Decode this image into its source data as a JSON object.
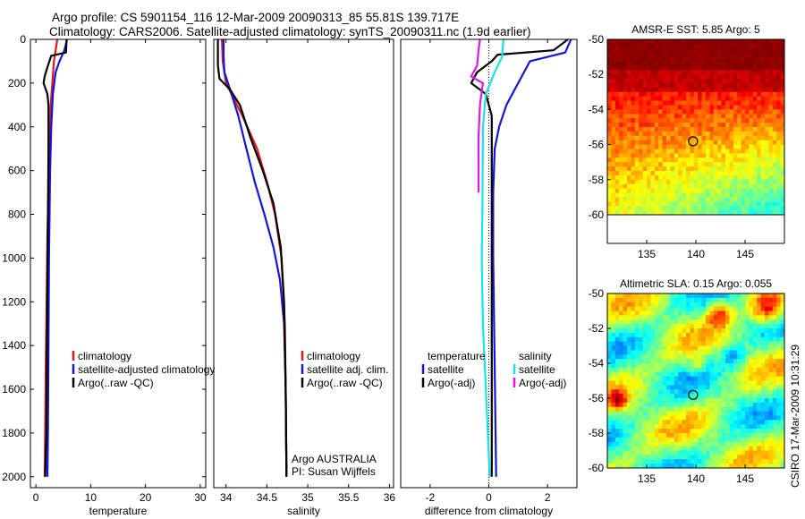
{
  "header": {
    "title_line1": "Argo profile: CS 5901154_116 12-Mar-2009 20090313_85 55.81S 139.717E",
    "title_line2": "Climatology: CARS2006. Satellite-adjusted climatology: synTS_20090311.nc (1.9d earlier)"
  },
  "stamp": "CSIRO 17-Mar-2009 10:31:29",
  "colors": {
    "climatology": "#e8141a",
    "satellite": "#1414e0",
    "argo": "#000000",
    "salinity_satellite": "#14e6e6",
    "salinity_argo": "#e614e6"
  },
  "chart_data": [
    {
      "id": "temperature",
      "type": "line",
      "xlabel": "temperature",
      "ylabel": "",
      "xlim": [
        -1,
        31
      ],
      "ylim": [
        2050,
        0
      ],
      "xticks": [
        0,
        10,
        20,
        30
      ],
      "yticks": [
        0,
        200,
        400,
        600,
        800,
        1000,
        1200,
        1400,
        1600,
        1800,
        2000
      ],
      "legend": [
        "climatology",
        "satellite-adjusted climatology",
        "Argo(..raw -QC)"
      ],
      "series": [
        {
          "name": "climatology",
          "color": "#e8141a",
          "x": [
            3.9,
            3.6,
            3.3,
            3.0,
            2.7,
            2.5,
            2.3,
            2.1,
            2.0,
            1.9,
            1.8,
            1.7,
            1.6
          ],
          "y": [
            0,
            50,
            100,
            200,
            300,
            500,
            700,
            900,
            1100,
            1300,
            1500,
            1800,
            2000
          ]
        },
        {
          "name": "satellite-adjusted climatology",
          "color": "#1414e0",
          "x": [
            5.7,
            5.2,
            4.3,
            3.6,
            3.1,
            2.8,
            2.6,
            2.5,
            2.4,
            2.3,
            2.2,
            2.1
          ],
          "y": [
            0,
            50,
            100,
            150,
            250,
            400,
            600,
            800,
            1000,
            1400,
            1800,
            2000
          ]
        },
        {
          "name": "Argo(..raw -QC)",
          "color": "#000000",
          "x": [
            5.6,
            5.5,
            2.8,
            2.2,
            1.6,
            1.4,
            2.1,
            2.3,
            2.3,
            2.2,
            2.1,
            2.0,
            1.9,
            1.7
          ],
          "y": [
            0,
            60,
            75,
            120,
            170,
            200,
            250,
            300,
            500,
            800,
            1100,
            1400,
            1800,
            2000
          ]
        }
      ]
    },
    {
      "id": "salinity",
      "type": "line",
      "xlabel": "salinity",
      "ylabel": "",
      "xlim": [
        33.85,
        36.05
      ],
      "ylim": [
        2050,
        0
      ],
      "xticks": [
        34,
        34.5,
        35,
        35.5,
        36
      ],
      "legend": [
        "climatology",
        "satellite adj. clim.",
        "Argo(..raw -QC)"
      ],
      "annotation": [
        "Argo AUSTRALIA",
        "PI: Susan Wijffels"
      ],
      "series": [
        {
          "name": "climatology",
          "color": "#e8141a",
          "x": [
            33.95,
            33.96,
            34.0,
            34.08,
            34.2,
            34.38,
            34.5,
            34.6,
            34.68,
            34.72,
            34.73,
            34.74
          ],
          "y": [
            0,
            100,
            200,
            260,
            350,
            500,
            650,
            800,
            1000,
            1300,
            1600,
            2000
          ]
        },
        {
          "name": "satellite adj. clim.",
          "color": "#1414e0",
          "x": [
            33.97,
            33.97,
            33.98,
            34.05,
            34.15,
            34.25,
            34.35,
            34.47,
            34.58,
            34.66,
            34.71,
            34.73,
            34.74
          ],
          "y": [
            0,
            80,
            150,
            230,
            350,
            500,
            650,
            800,
            950,
            1100,
            1300,
            1600,
            2000
          ]
        },
        {
          "name": "Argo(..raw -QC)",
          "color": "#000000",
          "x": [
            33.9,
            33.9,
            33.92,
            34.05,
            34.17,
            34.3,
            34.45,
            34.58,
            34.67,
            34.71,
            34.73,
            34.74
          ],
          "y": [
            0,
            120,
            180,
            230,
            300,
            450,
            600,
            750,
            950,
            1200,
            1600,
            2000
          ]
        }
      ]
    },
    {
      "id": "difference",
      "type": "line",
      "xlabel": "difference from climatology",
      "ylabel": "",
      "xlim": [
        -3,
        3
      ],
      "ylim": [
        2050,
        0
      ],
      "xticks": [
        -2,
        0,
        2
      ],
      "legend": [
        "temperature",
        "satellite",
        "Argo(-adj)",
        "salinity",
        "satellite",
        "Argo(-adj)"
      ],
      "series": [
        {
          "name": "temperature satellite",
          "color": "#1414e0",
          "x": [
            2.8,
            2.6,
            1.4,
            1.0,
            0.6,
            0.35,
            0.2,
            0.15,
            0.15,
            0.2,
            0.25
          ],
          "y": [
            0,
            60,
            100,
            200,
            300,
            400,
            500,
            700,
            1000,
            1500,
            2000
          ]
        },
        {
          "name": "temperature Argo(-adj)",
          "color": "#000000",
          "x": [
            2.7,
            2.2,
            0.3,
            0.1,
            -0.4,
            -0.6,
            -0.1,
            0.1,
            0.1,
            0.1,
            0.1,
            0.1
          ],
          "y": [
            0,
            50,
            70,
            100,
            150,
            200,
            250,
            350,
            500,
            1000,
            1500,
            2000
          ]
        },
        {
          "name": "salinity satellite",
          "color": "#14e6e6",
          "x": [
            0.5,
            0.45,
            0.2,
            -0.1,
            -0.2,
            -0.22,
            -0.24,
            -0.2,
            -0.1,
            0.0,
            0.03
          ],
          "y": [
            0,
            80,
            150,
            250,
            400,
            800,
            1000,
            1300,
            1600,
            1900,
            2000
          ]
        },
        {
          "name": "salinity Argo(-adj)",
          "color": "#e614e6",
          "x": [
            -0.3,
            -0.35,
            -0.4,
            -0.6,
            -0.2,
            -0.3,
            -0.35,
            -0.35,
            -0.35
          ],
          "y": [
            0,
            50,
            120,
            170,
            200,
            300,
            450,
            600,
            700
          ]
        }
      ]
    },
    {
      "id": "amsre_sst",
      "type": "heatmap",
      "title": "AMSR-E SST: 5.85 Argo: 5",
      "xlim": [
        131,
        149
      ],
      "ylim": [
        -60,
        -50
      ],
      "xticks": [
        135,
        140,
        145
      ],
      "yticks": [
        -50,
        -52,
        -54,
        -56,
        -58,
        -60
      ],
      "marker": {
        "lon": 139.717,
        "lat": -55.81
      }
    },
    {
      "id": "altimetric_sla",
      "type": "heatmap",
      "title": "Altimetric SLA: 0.15 Argo: 0.055",
      "xlim": [
        131,
        149
      ],
      "ylim": [
        -60,
        -50
      ],
      "xticks": [
        135,
        140,
        145
      ],
      "yticks": [
        -50,
        -52,
        -54,
        -56,
        -58,
        -60
      ],
      "marker": {
        "lon": 139.717,
        "lat": -55.81
      }
    }
  ]
}
